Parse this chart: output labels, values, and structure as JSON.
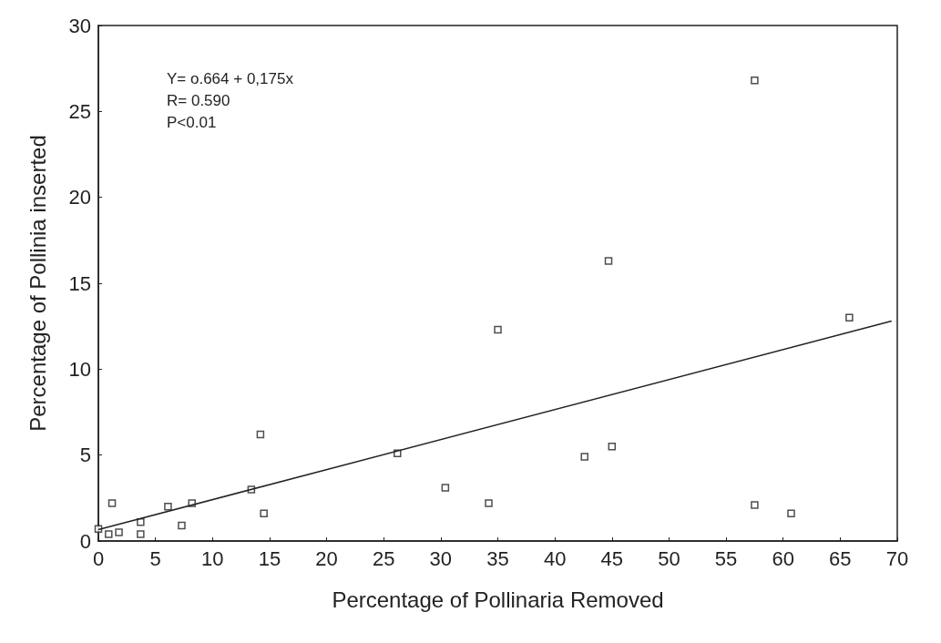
{
  "chart_data": {
    "type": "scatter",
    "xlabel": "Percentage of Pollinaria Removed",
    "ylabel": "Percentage of Pollinia inserted",
    "annotations": [
      "Y= o.664 + 0,175x",
      "R= 0.590",
      "P<0.01"
    ],
    "xlim": [
      0,
      70
    ],
    "xticks": [
      0,
      5,
      10,
      15,
      20,
      25,
      30,
      35,
      40,
      45,
      50,
      55,
      60,
      65,
      70
    ],
    "ylim": [
      0,
      30
    ],
    "yticks": [
      0,
      5,
      10,
      15,
      20,
      25,
      30
    ],
    "grid": false,
    "marker": "square",
    "series": [
      {
        "color": "#222222",
        "x": [
          0,
          0.9,
          1.2,
          1.8,
          3.7,
          3.7,
          6.1,
          7.3,
          8.2,
          13.4,
          14.2,
          14.5,
          26.2,
          30.4,
          34.2,
          35.0,
          42.6,
          45.0,
          44.7,
          57.5,
          65.8,
          57.5,
          60.7
        ],
        "values": [
          0.7,
          0.4,
          2.2,
          0.5,
          1.1,
          0.4,
          2.0,
          0.9,
          2.2,
          3.0,
          6.2,
          1.6,
          5.1,
          3.1,
          2.2,
          12.3,
          4.9,
          5.5,
          16.3,
          26.8,
          13.0,
          2.1,
          1.6
        ]
      },
      {
        "type": "line",
        "color": "#222222",
        "marker": "none",
        "line_style": "solid",
        "x": [
          0,
          69.5
        ],
        "values": [
          0.66,
          12.8
        ]
      }
    ]
  }
}
